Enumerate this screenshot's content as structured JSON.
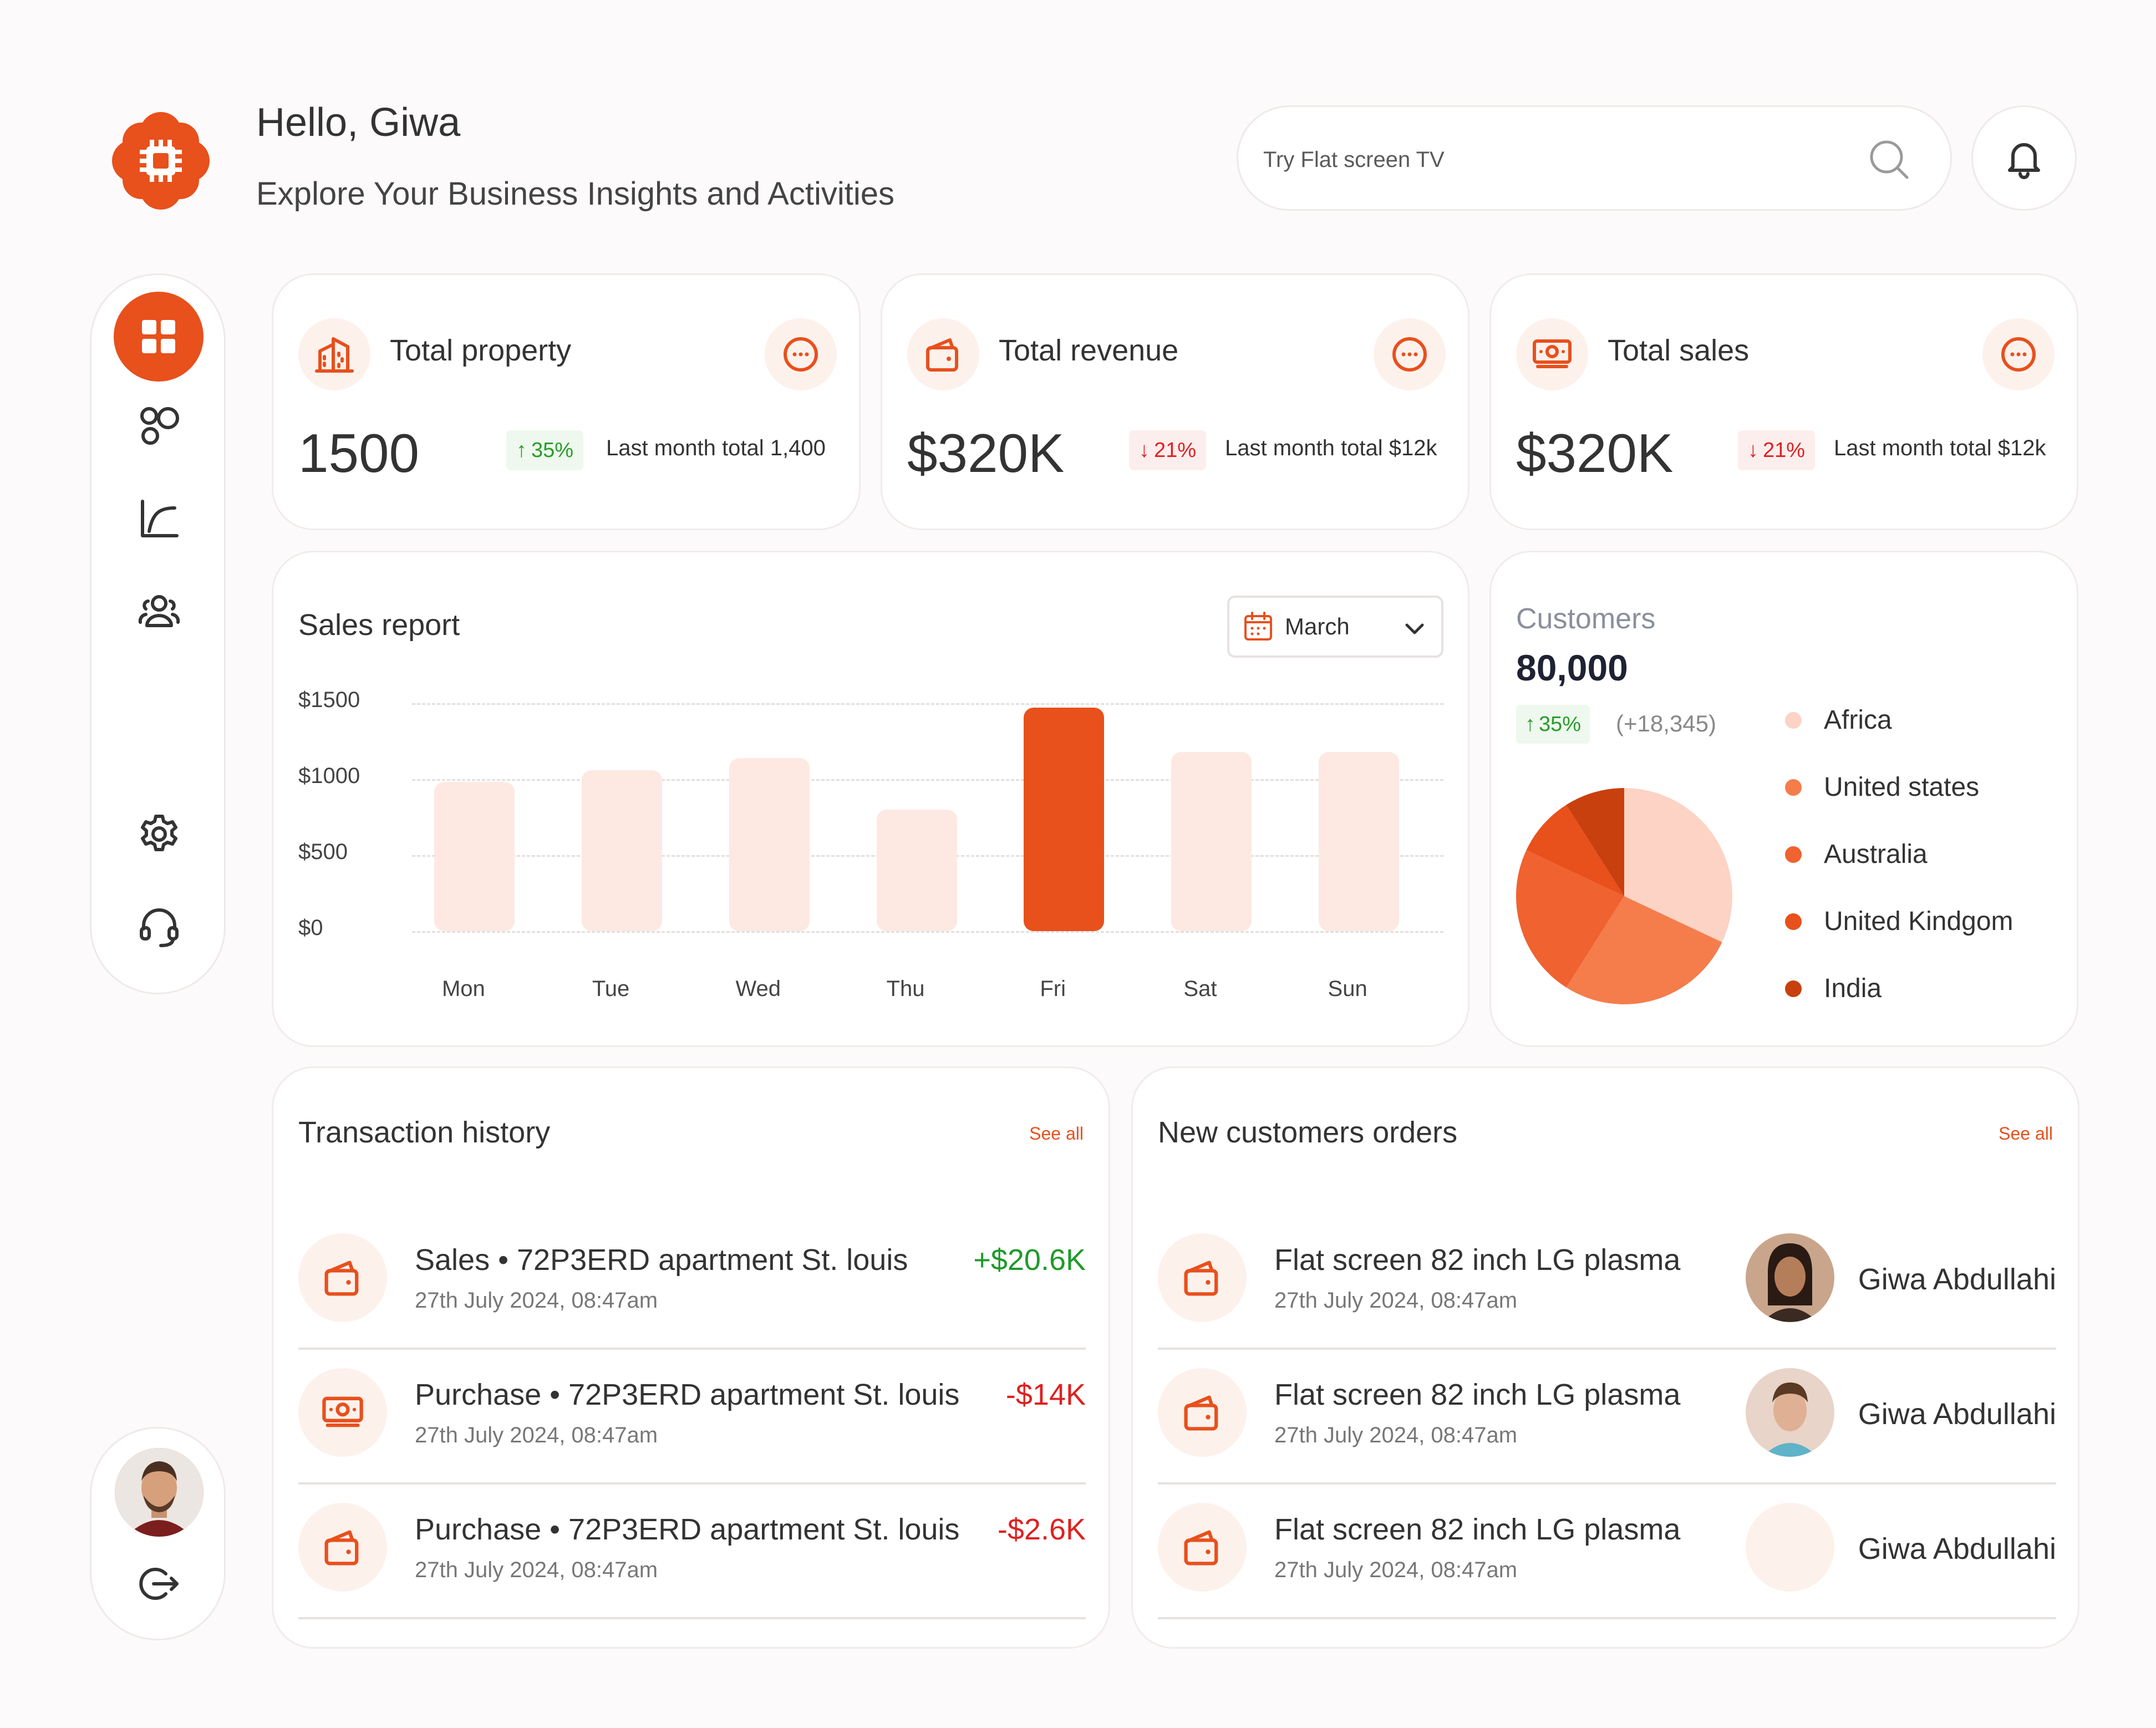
{
  "header": {
    "greeting": "Hello, Giwa",
    "subtitle": "Explore Your Business Insights and Activities",
    "search_placeholder": "Try Flat screen TV"
  },
  "colors": {
    "accent": "#e8501c",
    "accent_light": "#fde9e1",
    "positive": "#1e9a2a",
    "negative": "#e02020"
  },
  "sidebar": {
    "items": [
      {
        "icon": "grid-icon",
        "active": true
      },
      {
        "icon": "circles-icon",
        "active": false
      },
      {
        "icon": "chart-line-icon",
        "active": false
      },
      {
        "icon": "users-icon",
        "active": false
      },
      {
        "icon": "gear-icon",
        "active": false
      },
      {
        "icon": "headset-icon",
        "active": false
      }
    ],
    "bottom": [
      {
        "icon": "avatar"
      },
      {
        "icon": "logout-icon"
      }
    ]
  },
  "stats": [
    {
      "title": "Total property",
      "value": "1500",
      "change": "35%",
      "direction": "up",
      "note": "Last month total 1,400",
      "icon": "building-icon"
    },
    {
      "title": "Total revenue",
      "value": "$320K",
      "change": "21%",
      "direction": "down",
      "note": "Last month total $12k",
      "icon": "wallet-icon"
    },
    {
      "title": "Total sales",
      "value": "$320K",
      "change": "21%",
      "direction": "down",
      "note": "Last month total $12k",
      "icon": "cash-icon"
    }
  ],
  "sales_report": {
    "title": "Sales report",
    "month": "March",
    "y_ticks": [
      "$1500",
      "$1000",
      "$500",
      "$0"
    ]
  },
  "chart_data": {
    "type": "bar",
    "title": "Sales report",
    "categories": [
      "Mon",
      "Tue",
      "Wed",
      "Thu",
      "Fri",
      "Sat",
      "Sun"
    ],
    "values": [
      980,
      1060,
      1140,
      800,
      1470,
      1180,
      1180
    ],
    "highlight": "Fri",
    "ylim": [
      0,
      1500
    ],
    "y_tick_values": [
      0,
      500,
      1000,
      1500
    ],
    "grid": true
  },
  "customers": {
    "label": "Customers",
    "value": "80,000",
    "change": "35%",
    "delta": "(+18,345)",
    "legend": [
      {
        "name": "Africa",
        "color": "#fcd3c4",
        "value": 32
      },
      {
        "name": "United states",
        "color": "#f47d4b",
        "value": 27
      },
      {
        "name": "Australia",
        "color": "#f0622f",
        "value": 23
      },
      {
        "name": "United Kindgom",
        "color": "#e8501c",
        "value": 9
      },
      {
        "name": "India",
        "color": "#c8400e",
        "value": 9
      }
    ]
  },
  "transactions": {
    "title": "Transaction history",
    "see_all": "See all",
    "rows": [
      {
        "title": "Sales • 72P3ERD apartment St. louis",
        "date": "27th July 2024, 08:47am",
        "amount": "+$20.6K",
        "kind": "pos",
        "icon": "wallet-icon"
      },
      {
        "title": "Purchase • 72P3ERD apartment St. louis",
        "date": "27th July 2024, 08:47am",
        "amount": "-$14K",
        "kind": "neg",
        "icon": "cash-icon"
      },
      {
        "title": "Purchase • 72P3ERD apartment St. louis",
        "date": "27th July 2024, 08:47am",
        "amount": "-$2.6K",
        "kind": "neg",
        "icon": "wallet-icon"
      }
    ]
  },
  "orders": {
    "title": "New customers orders",
    "see_all": "See all",
    "rows": [
      {
        "title": "Flat screen 82 inch LG plasma",
        "date": "27th July 2024, 08:47am",
        "customer": "Giwa Abdullahi"
      },
      {
        "title": "Flat screen 82 inch LG plasma",
        "date": "27th July 2024, 08:47am",
        "customer": "Giwa Abdullahi"
      },
      {
        "title": "Flat screen 82 inch LG plasma",
        "date": "27th July 2024, 08:47am",
        "customer": "Giwa Abdullahi"
      }
    ]
  }
}
